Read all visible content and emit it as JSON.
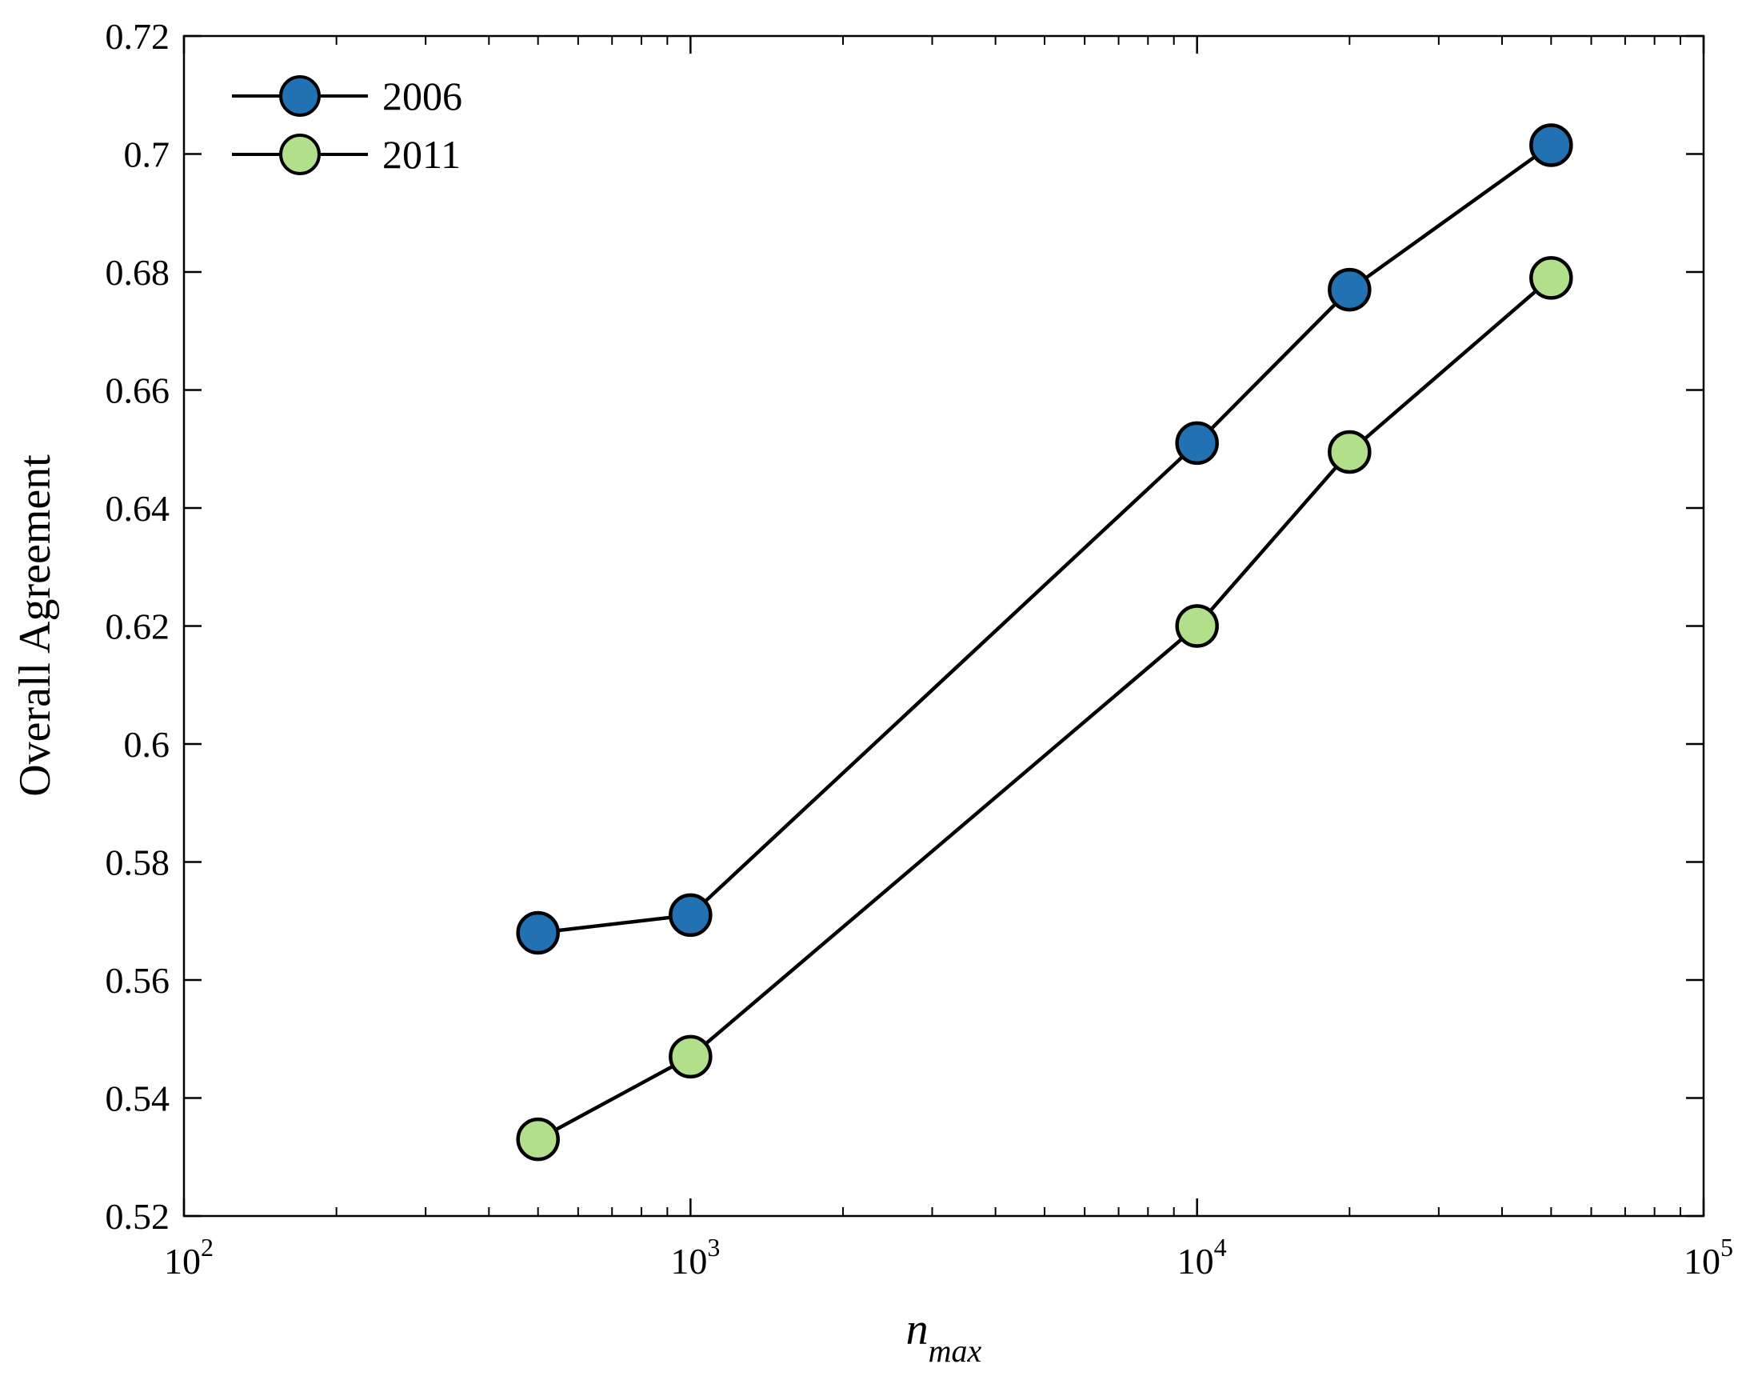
{
  "chart_data": {
    "type": "line",
    "xscale": "log",
    "xlim": [
      100,
      100000
    ],
    "ylim": [
      0.52,
      0.72
    ],
    "xlabel": "n",
    "xlabel_sub": "max",
    "ylabel": "Overall Agreement",
    "x_ticks": [
      {
        "value": 100,
        "base": "10",
        "exp": "2"
      },
      {
        "value": 1000,
        "base": "10",
        "exp": "3"
      },
      {
        "value": 10000,
        "base": "10",
        "exp": "4"
      },
      {
        "value": 100000,
        "base": "10",
        "exp": "5"
      }
    ],
    "y_ticks": [
      "0.52",
      "0.54",
      "0.56",
      "0.58",
      "0.6",
      "0.62",
      "0.64",
      "0.66",
      "0.68",
      "0.7",
      "0.72"
    ],
    "legend_position": "top-left",
    "grid": false,
    "series": [
      {
        "name": "2006",
        "color": "#2271b3",
        "x": [
          500,
          1000,
          10000,
          20000,
          50000
        ],
        "y": [
          0.568,
          0.571,
          0.651,
          0.677,
          0.7015
        ]
      },
      {
        "name": "2011",
        "color": "#b2df8a",
        "x": [
          500,
          1000,
          10000,
          20000,
          50000
        ],
        "y": [
          0.533,
          0.547,
          0.62,
          0.6495,
          0.679
        ]
      }
    ]
  }
}
